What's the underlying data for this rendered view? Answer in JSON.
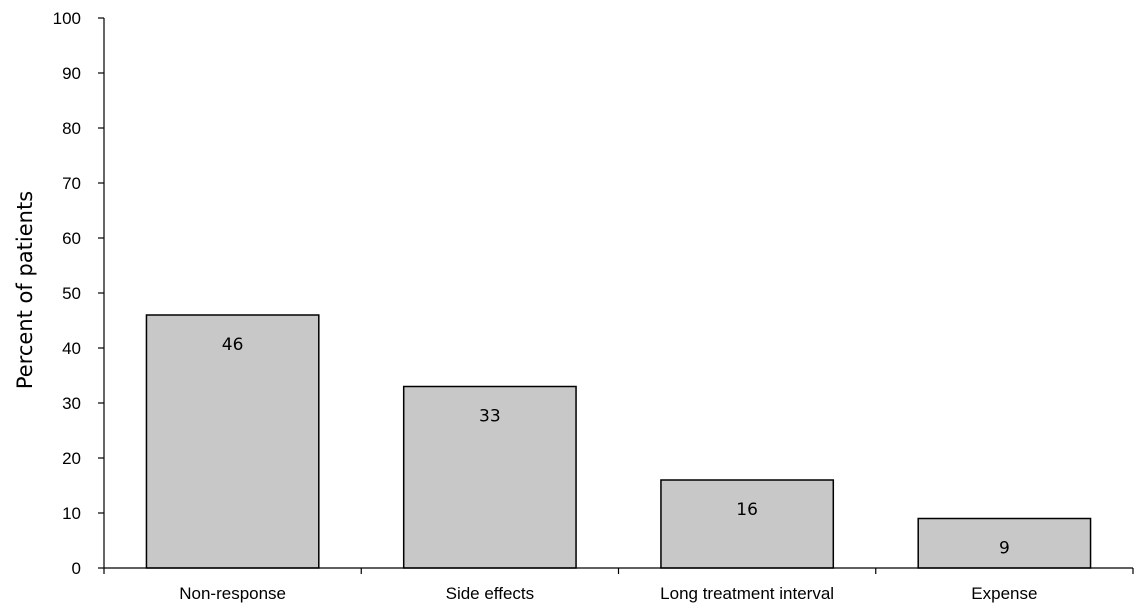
{
  "chart_data": {
    "type": "bar",
    "title": "",
    "xlabel": "",
    "ylabel": "Percent of patients",
    "categories": [
      "Non-response",
      "Side effects",
      "Long treatment interval",
      "Expense"
    ],
    "values": [
      46,
      33,
      16,
      9
    ],
    "data_labels": [
      "46",
      "33",
      "16",
      "9"
    ],
    "ylim": [
      0,
      100
    ],
    "yticks": [
      0,
      10,
      20,
      30,
      40,
      50,
      60,
      70,
      80,
      90,
      100
    ],
    "ytick_labels": [
      "0",
      "10",
      "20",
      "30",
      "40",
      "50",
      "60",
      "70",
      "80",
      "90",
      "100"
    ],
    "grid": false,
    "legend": "none",
    "bar_color": "#c8c8c8",
    "bar_edge_color": "#000000"
  }
}
